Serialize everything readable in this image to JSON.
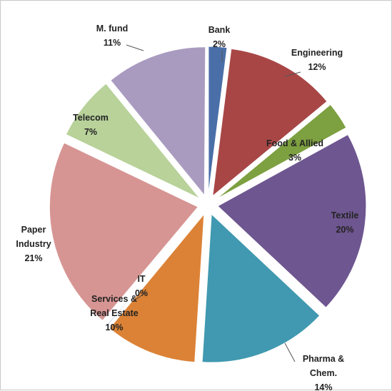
{
  "chart_data": {
    "type": "pie",
    "exploded": true,
    "start_angle_deg": 0,
    "direction": "clockwise",
    "slices": [
      {
        "name": "Bank",
        "value": 2,
        "label": "2%",
        "color": "#4a6fa8"
      },
      {
        "name": "Engineering",
        "value": 12,
        "label": "12%",
        "color": "#a84646"
      },
      {
        "name": "Food & Allied",
        "value": 3,
        "label": "3%",
        "color": "#7da040"
      },
      {
        "name": "Textile",
        "value": 20,
        "label": "20%",
        "color": "#6e5690"
      },
      {
        "name": "Pharma & Chem.",
        "value": 14,
        "label": "14%",
        "color": "#4099b0"
      },
      {
        "name": "Services & Real Estate",
        "value": 10,
        "label": "10%",
        "color": "#dc8236"
      },
      {
        "name": "IT",
        "value": 0,
        "label": "0%",
        "color": "#8faed6"
      },
      {
        "name": "Paper Industry",
        "value": 21,
        "label": "21%",
        "color": "#d69593"
      },
      {
        "name": "Telecom",
        "value": 7,
        "label": "7%",
        "color": "#b8d29a"
      },
      {
        "name": "M. fund",
        "value": 11,
        "label": "11%",
        "color": "#a99bc0"
      }
    ]
  }
}
